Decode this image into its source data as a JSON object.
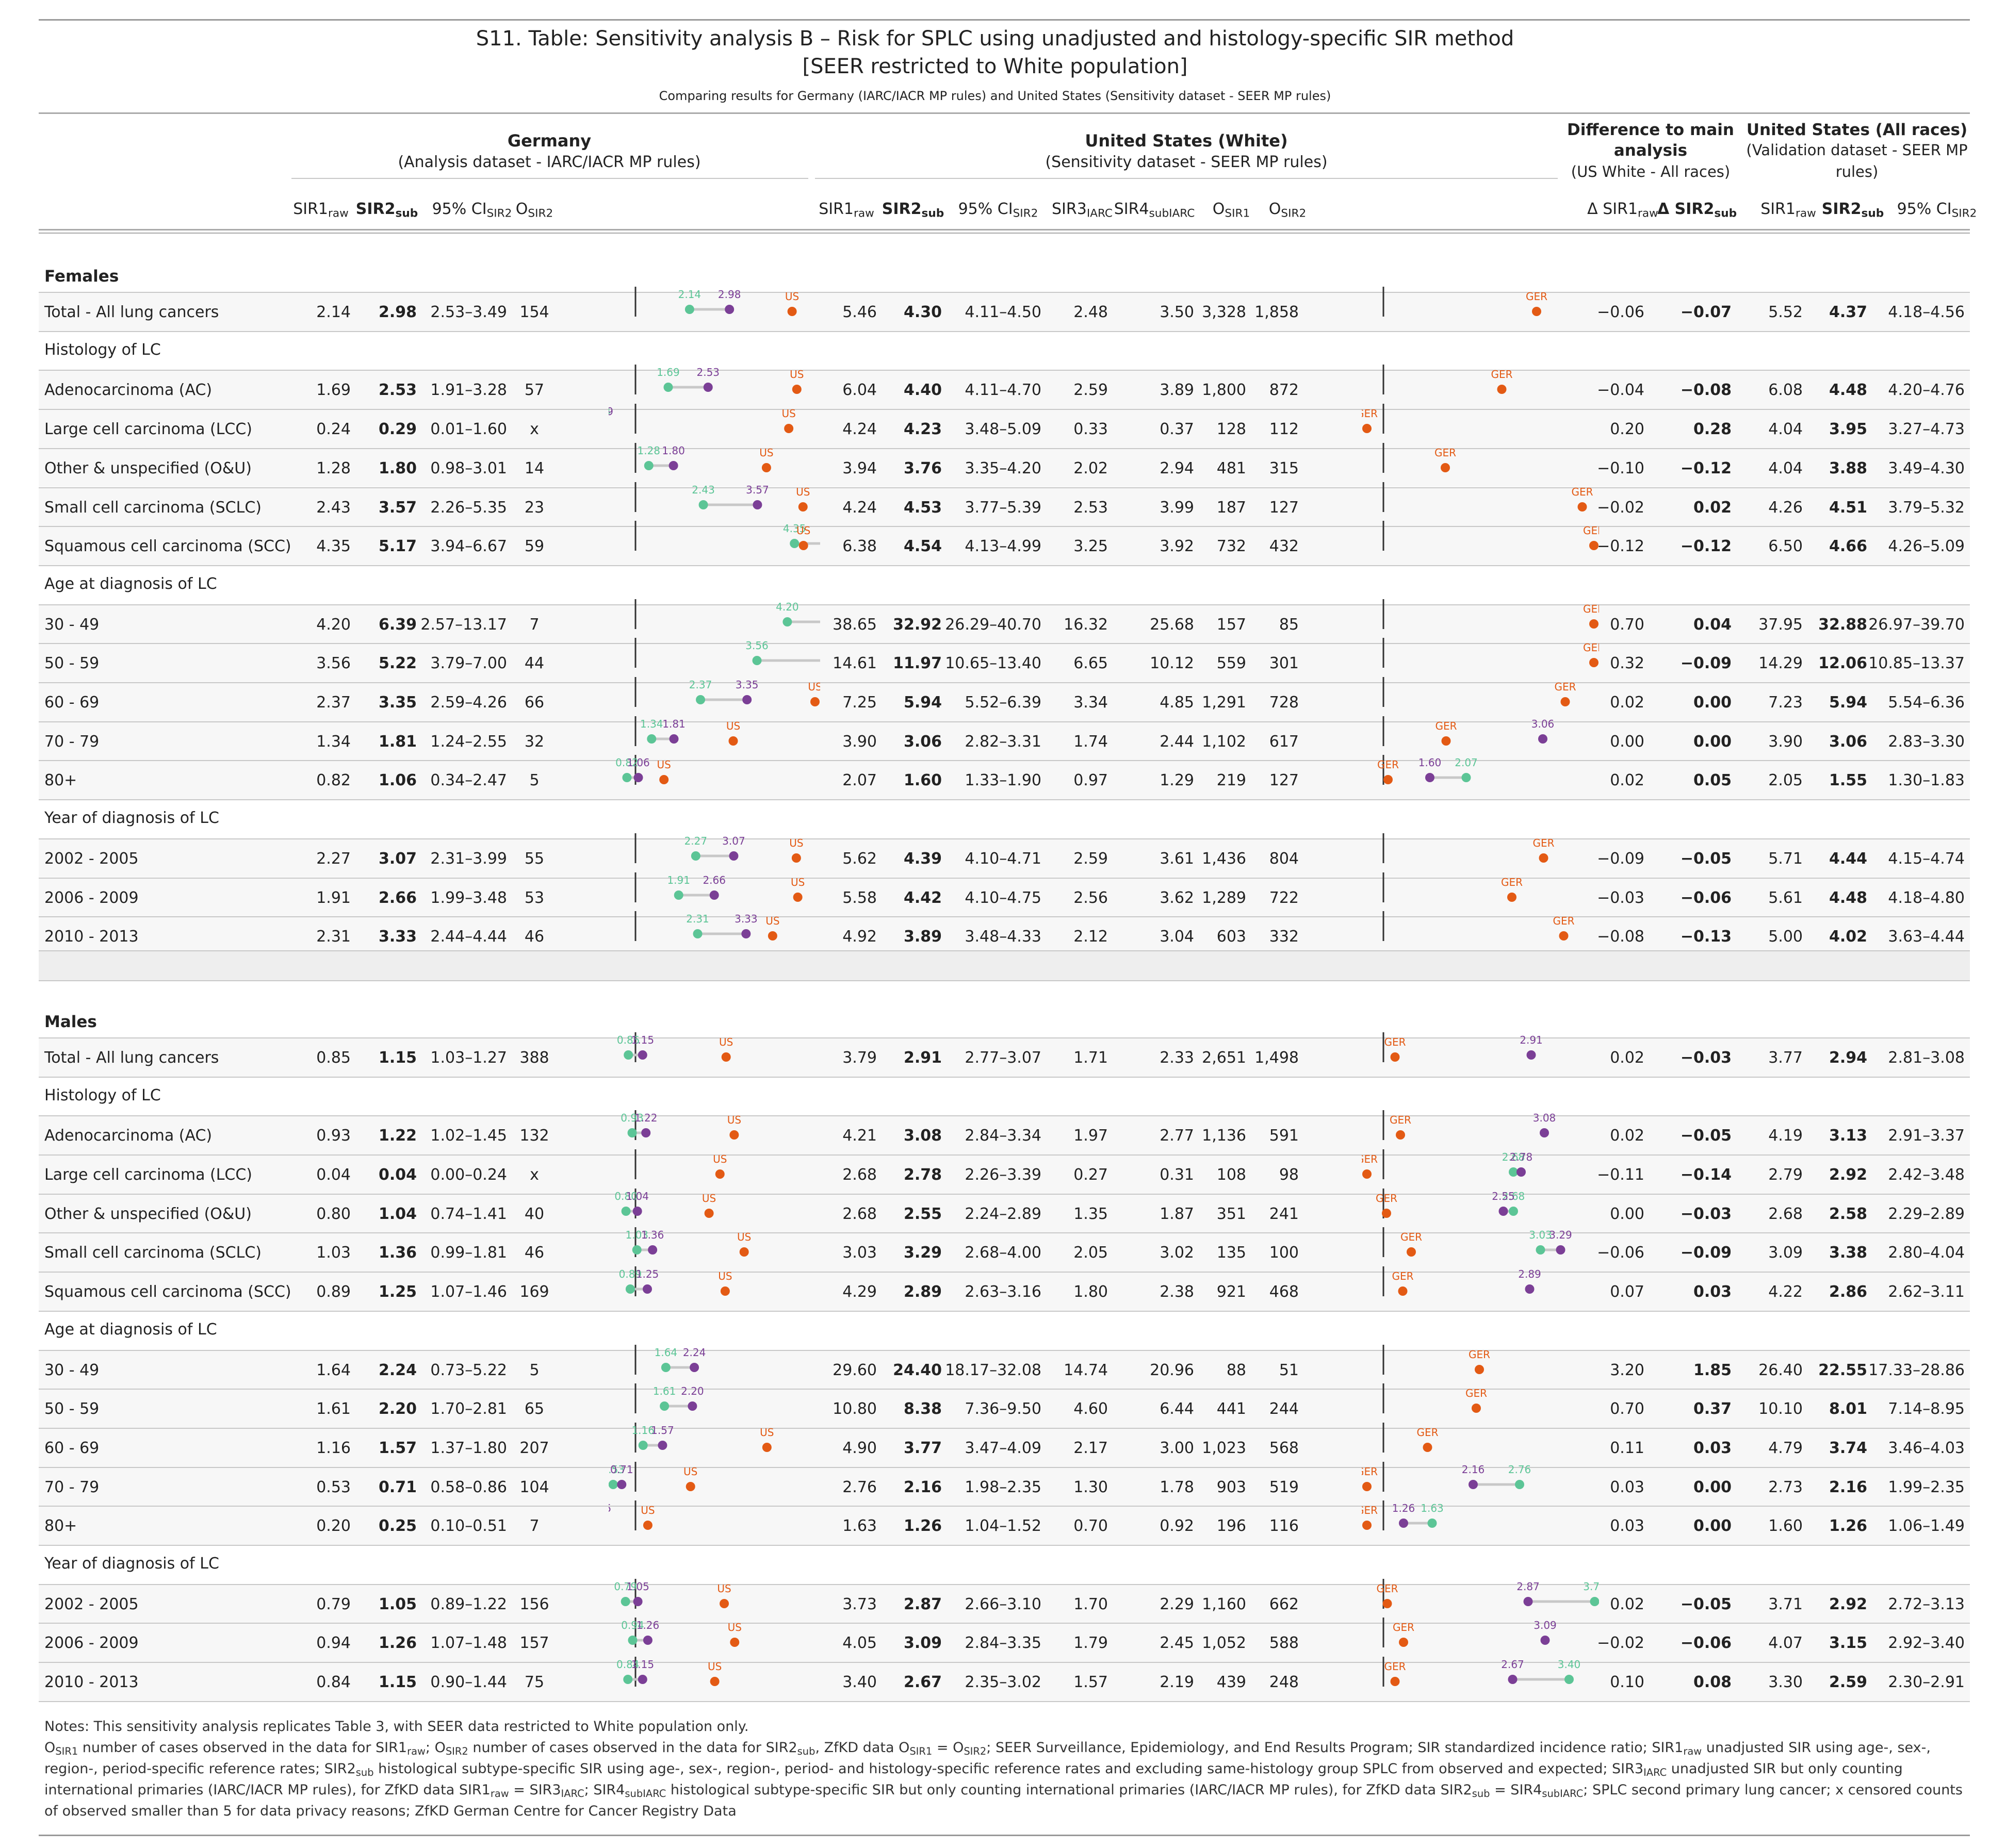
{
  "title": "S11. Table: Sensitivity analysis B – Risk for SPLC using unadjusted and histology-specific SIR method",
  "subtitle": "[SEER restricted to White population]",
  "comparing": "Comparing results for Germany (IARC/IACR MP rules) and United States (Sensitivity dataset - SEER MP rules)",
  "groups": {
    "germany": {
      "name": "Germany",
      "desc": "(Analysis dataset - IARC/IACR MP rules)"
    },
    "us_white": {
      "name": "United States (White)",
      "desc": "(Sensitivity dataset - SEER MP rules)"
    },
    "diff": {
      "name1": "Difference to main",
      "name2": "analysis",
      "desc": "(US White - All races)"
    },
    "us_all": {
      "name": "United States (All races)",
      "desc1": "(Validation dataset - SEER MP",
      "desc2": "rules)"
    }
  },
  "columns": {
    "sir1": {
      "base": "SIR1",
      "sub": "raw"
    },
    "sir2": {
      "base": "SIR2",
      "sub": "sub"
    },
    "ci": {
      "base": "95% CI",
      "sub": "SIR2"
    },
    "osir2": {
      "base": "O",
      "sub": "SIR2"
    },
    "sir3": {
      "base": "SIR3",
      "sub": "IARC"
    },
    "sir4": {
      "base": "SIR4",
      "sub": "subIARC"
    },
    "osir1": {
      "base": "O",
      "sub": "SIR1"
    },
    "dsir1": {
      "base": "Δ SIR1",
      "sub": "raw"
    },
    "dsir2": {
      "base": "Δ SIR2",
      "sub": "sub"
    }
  },
  "plot_labels": {
    "us": "US",
    "ger": "GER"
  },
  "colors": {
    "sir1": "#5cc596",
    "sir2": "#7b3f96",
    "other": "#e35a14",
    "line": "#c8c8c8",
    "shade": "#f7f7f7"
  },
  "sections": [
    {
      "name": "Females",
      "rows": [
        {
          "type": "data",
          "label": "Total - All lung cancers",
          "g": [
            "2.14",
            "2.98",
            "2.53–3.49",
            "154"
          ],
          "u": [
            "5.46",
            "4.30",
            "4.11–4.50",
            "2.48",
            "3.50",
            "3,328",
            "1,858"
          ],
          "d": [
            "−0.06",
            "−0.07"
          ],
          "a": [
            "5.52",
            "4.37",
            "4.18–4.56"
          ]
        },
        {
          "type": "sub",
          "label": "Histology of LC"
        },
        {
          "type": "data",
          "label": "Adenocarcinoma (AC)",
          "g": [
            "1.69",
            "2.53",
            "1.91–3.28",
            "57"
          ],
          "u": [
            "6.04",
            "4.40",
            "4.11–4.70",
            "2.59",
            "3.89",
            "1,800",
            "872"
          ],
          "d": [
            "−0.04",
            "−0.08"
          ],
          "a": [
            "6.08",
            "4.48",
            "4.20–4.76"
          ]
        },
        {
          "type": "data",
          "label": "Large cell carcinoma (LCC)",
          "g": [
            "0.24",
            "0.29",
            "0.01–1.60",
            "x"
          ],
          "u": [
            "4.24",
            "4.23",
            "3.48–5.09",
            "0.33",
            "0.37",
            "128",
            "112"
          ],
          "d": [
            "0.20",
            "0.28"
          ],
          "a": [
            "4.04",
            "3.95",
            "3.27–4.73"
          ]
        },
        {
          "type": "data",
          "label": "Other & unspecified (O&U)",
          "g": [
            "1.28",
            "1.80",
            "0.98–3.01",
            "14"
          ],
          "u": [
            "3.94",
            "3.76",
            "3.35–4.20",
            "2.02",
            "2.94",
            "481",
            "315"
          ],
          "d": [
            "−0.10",
            "−0.12"
          ],
          "a": [
            "4.04",
            "3.88",
            "3.49–4.30"
          ]
        },
        {
          "type": "data",
          "label": "Small cell carcinoma (SCLC)",
          "g": [
            "2.43",
            "3.57",
            "2.26–5.35",
            "23"
          ],
          "u": [
            "4.24",
            "4.53",
            "3.77–5.39",
            "2.53",
            "3.99",
            "187",
            "127"
          ],
          "d": [
            "−0.02",
            "0.02"
          ],
          "a": [
            "4.26",
            "4.51",
            "3.79–5.32"
          ]
        },
        {
          "type": "data",
          "label": "Squamous cell carcinoma (SCC)",
          "g": [
            "4.35",
            "5.17",
            "3.94–6.67",
            "59"
          ],
          "u": [
            "6.38",
            "4.54",
            "4.13–4.99",
            "3.25",
            "3.92",
            "732",
            "432"
          ],
          "d": [
            "−0.12",
            "−0.12"
          ],
          "a": [
            "6.50",
            "4.66",
            "4.26–5.09"
          ]
        },
        {
          "type": "sub",
          "label": "Age at diagnosis of LC"
        },
        {
          "type": "data",
          "label": "30 - 49",
          "g": [
            "4.20",
            "6.39",
            "2.57–13.17",
            "7"
          ],
          "u": [
            "38.65",
            "32.92",
            "26.29–40.70",
            "16.32",
            "25.68",
            "157",
            "85"
          ],
          "d": [
            "0.70",
            "0.04"
          ],
          "a": [
            "37.95",
            "32.88",
            "26.97–39.70"
          ]
        },
        {
          "type": "data",
          "label": "50 - 59",
          "g": [
            "3.56",
            "5.22",
            "3.79–7.00",
            "44"
          ],
          "u": [
            "14.61",
            "11.97",
            "10.65–13.40",
            "6.65",
            "10.12",
            "559",
            "301"
          ],
          "d": [
            "0.32",
            "−0.09"
          ],
          "a": [
            "14.29",
            "12.06",
            "10.85–13.37"
          ]
        },
        {
          "type": "data",
          "label": "60 - 69",
          "g": [
            "2.37",
            "3.35",
            "2.59–4.26",
            "66"
          ],
          "u": [
            "7.25",
            "5.94",
            "5.52–6.39",
            "3.34",
            "4.85",
            "1,291",
            "728"
          ],
          "d": [
            "0.02",
            "0.00"
          ],
          "a": [
            "7.23",
            "5.94",
            "5.54–6.36"
          ]
        },
        {
          "type": "data",
          "label": "70 - 79",
          "g": [
            "1.34",
            "1.81",
            "1.24–2.55",
            "32"
          ],
          "u": [
            "3.90",
            "3.06",
            "2.82–3.31",
            "1.74",
            "2.44",
            "1,102",
            "617"
          ],
          "d": [
            "0.00",
            "0.00"
          ],
          "a": [
            "3.90",
            "3.06",
            "2.83–3.30"
          ]
        },
        {
          "type": "data",
          "label": "80+",
          "g": [
            "0.82",
            "1.06",
            "0.34–2.47",
            "5"
          ],
          "u": [
            "2.07",
            "1.60",
            "1.33–1.90",
            "0.97",
            "1.29",
            "219",
            "127"
          ],
          "d": [
            "0.02",
            "0.05"
          ],
          "a": [
            "2.05",
            "1.55",
            "1.30–1.83"
          ]
        },
        {
          "type": "sub",
          "label": "Year of diagnosis of LC"
        },
        {
          "type": "data",
          "label": "2002 - 2005",
          "g": [
            "2.27",
            "3.07",
            "2.31–3.99",
            "55"
          ],
          "u": [
            "5.62",
            "4.39",
            "4.10–4.71",
            "2.59",
            "3.61",
            "1,436",
            "804"
          ],
          "d": [
            "−0.09",
            "−0.05"
          ],
          "a": [
            "5.71",
            "4.44",
            "4.15–4.74"
          ]
        },
        {
          "type": "data",
          "label": "2006 - 2009",
          "g": [
            "1.91",
            "2.66",
            "1.99–3.48",
            "53"
          ],
          "u": [
            "5.58",
            "4.42",
            "4.10–4.75",
            "2.56",
            "3.62",
            "1,289",
            "722"
          ],
          "d": [
            "−0.03",
            "−0.06"
          ],
          "a": [
            "5.61",
            "4.48",
            "4.18–4.80"
          ]
        },
        {
          "type": "data",
          "label": "2010 - 2013",
          "g": [
            "2.31",
            "3.33",
            "2.44–4.44",
            "46"
          ],
          "u": [
            "4.92",
            "3.89",
            "3.48–4.33",
            "2.12",
            "3.04",
            "603",
            "332"
          ],
          "d": [
            "−0.08",
            "−0.13"
          ],
          "a": [
            "5.00",
            "4.02",
            "3.63–4.44"
          ]
        }
      ]
    },
    {
      "name": "Males",
      "rows": [
        {
          "type": "data",
          "label": "Total - All lung cancers",
          "g": [
            "0.85",
            "1.15",
            "1.03–1.27",
            "388"
          ],
          "u": [
            "3.79",
            "2.91",
            "2.77–3.07",
            "1.71",
            "2.33",
            "2,651",
            "1,498"
          ],
          "d": [
            "0.02",
            "−0.03"
          ],
          "a": [
            "3.77",
            "2.94",
            "2.81–3.08"
          ]
        },
        {
          "type": "sub",
          "label": "Histology of LC"
        },
        {
          "type": "data",
          "label": "Adenocarcinoma (AC)",
          "g": [
            "0.93",
            "1.22",
            "1.02–1.45",
            "132"
          ],
          "u": [
            "4.21",
            "3.08",
            "2.84–3.34",
            "1.97",
            "2.77",
            "1,136",
            "591"
          ],
          "d": [
            "0.02",
            "−0.05"
          ],
          "a": [
            "4.19",
            "3.13",
            "2.91–3.37"
          ]
        },
        {
          "type": "data",
          "label": "Large cell carcinoma (LCC)",
          "g": [
            "0.04",
            "0.04",
            "0.00–0.24",
            "x"
          ],
          "u": [
            "2.68",
            "2.78",
            "2.26–3.39",
            "0.27",
            "0.31",
            "108",
            "98"
          ],
          "d": [
            "−0.11",
            "−0.14"
          ],
          "a": [
            "2.79",
            "2.92",
            "2.42–3.48"
          ]
        },
        {
          "type": "data",
          "label": "Other & unspecified (O&U)",
          "g": [
            "0.80",
            "1.04",
            "0.74–1.41",
            "40"
          ],
          "u": [
            "2.68",
            "2.55",
            "2.24–2.89",
            "1.35",
            "1.87",
            "351",
            "241"
          ],
          "d": [
            "0.00",
            "−0.03"
          ],
          "a": [
            "2.68",
            "2.58",
            "2.29–2.89"
          ]
        },
        {
          "type": "data",
          "label": "Small cell carcinoma (SCLC)",
          "g": [
            "1.03",
            "1.36",
            "0.99–1.81",
            "46"
          ],
          "u": [
            "3.03",
            "3.29",
            "2.68–4.00",
            "2.05",
            "3.02",
            "135",
            "100"
          ],
          "d": [
            "−0.06",
            "−0.09"
          ],
          "a": [
            "3.09",
            "3.38",
            "2.80–4.04"
          ]
        },
        {
          "type": "data",
          "label": "Squamous cell carcinoma (SCC)",
          "g": [
            "0.89",
            "1.25",
            "1.07–1.46",
            "169"
          ],
          "u": [
            "4.29",
            "2.89",
            "2.63–3.16",
            "1.80",
            "2.38",
            "921",
            "468"
          ],
          "d": [
            "0.07",
            "0.03"
          ],
          "a": [
            "4.22",
            "2.86",
            "2.62–3.11"
          ]
        },
        {
          "type": "sub",
          "label": "Age at diagnosis of LC"
        },
        {
          "type": "data",
          "label": "30 - 49",
          "g": [
            "1.64",
            "2.24",
            "0.73–5.22",
            "5"
          ],
          "u": [
            "29.60",
            "24.40",
            "18.17–32.08",
            "14.74",
            "20.96",
            "88",
            "51"
          ],
          "d": [
            "3.20",
            "1.85"
          ],
          "a": [
            "26.40",
            "22.55",
            "17.33–28.86"
          ]
        },
        {
          "type": "data",
          "label": "50 - 59",
          "g": [
            "1.61",
            "2.20",
            "1.70–2.81",
            "65"
          ],
          "u": [
            "10.80",
            "8.38",
            "7.36–9.50",
            "4.60",
            "6.44",
            "441",
            "244"
          ],
          "d": [
            "0.70",
            "0.37"
          ],
          "a": [
            "10.10",
            "8.01",
            "7.14–8.95"
          ]
        },
        {
          "type": "data",
          "label": "60 - 69",
          "g": [
            "1.16",
            "1.57",
            "1.37–1.80",
            "207"
          ],
          "u": [
            "4.90",
            "3.77",
            "3.47–4.09",
            "2.17",
            "3.00",
            "1,023",
            "568"
          ],
          "d": [
            "0.11",
            "0.03"
          ],
          "a": [
            "4.79",
            "3.74",
            "3.46–4.03"
          ]
        },
        {
          "type": "data",
          "label": "70 - 79",
          "g": [
            "0.53",
            "0.71",
            "0.58–0.86",
            "104"
          ],
          "u": [
            "2.76",
            "2.16",
            "1.98–2.35",
            "1.30",
            "1.78",
            "903",
            "519"
          ],
          "d": [
            "0.03",
            "0.00"
          ],
          "a": [
            "2.73",
            "2.16",
            "1.99–2.35"
          ]
        },
        {
          "type": "data",
          "label": "80+",
          "g": [
            "0.20",
            "0.25",
            "0.10–0.51",
            "7"
          ],
          "u": [
            "1.63",
            "1.26",
            "1.04–1.52",
            "0.70",
            "0.92",
            "196",
            "116"
          ],
          "d": [
            "0.03",
            "0.00"
          ],
          "a": [
            "1.60",
            "1.26",
            "1.06–1.49"
          ]
        },
        {
          "type": "sub",
          "label": "Year of diagnosis of LC"
        },
        {
          "type": "data",
          "label": "2002 - 2005",
          "g": [
            "0.79",
            "1.05",
            "0.89–1.22",
            "156"
          ],
          "u": [
            "3.73",
            "2.87",
            "2.66–3.10",
            "1.70",
            "2.29",
            "1,160",
            "662"
          ],
          "d": [
            "0.02",
            "−0.05"
          ],
          "a": [
            "3.71",
            "2.92",
            "2.72–3.13"
          ]
        },
        {
          "type": "data",
          "label": "2006 - 2009",
          "g": [
            "0.94",
            "1.26",
            "1.07–1.48",
            "157"
          ],
          "u": [
            "4.05",
            "3.09",
            "2.84–3.35",
            "1.79",
            "2.45",
            "1,052",
            "588"
          ],
          "d": [
            "−0.02",
            "−0.06"
          ],
          "a": [
            "4.07",
            "3.15",
            "2.92–3.40"
          ]
        },
        {
          "type": "data",
          "label": "2010 - 2013",
          "g": [
            "0.84",
            "1.15",
            "0.90–1.44",
            "75"
          ],
          "u": [
            "3.40",
            "2.67",
            "2.35–3.02",
            "1.57",
            "2.19",
            "439",
            "248"
          ],
          "d": [
            "0.10",
            "0.08"
          ],
          "a": [
            "3.30",
            "2.59",
            "2.30–2.91"
          ]
        }
      ]
    }
  ],
  "notes": {
    "l1": "Notes: This sensitivity analysis replicates Table 3, with SEER data restricted to White population only.",
    "p1a": "O",
    "p1s": "SIR1",
    "p1b": " number of cases observed in the data for SIR1",
    "p1bs": "raw",
    "p1c": "; O",
    "p1cs": "SIR2",
    "p2a": " number of cases observed in the data for SIR2",
    "p2as": "sub",
    "p2b": ", ZfKD data O",
    "p2bs": "SIR1",
    "p2c": " = O",
    "p2cs": "SIR2",
    "p3a": "; SEER Surveillance, Epidemiology, and End Results Program; SIR standardized incidence ratio; SIR1",
    "p3as": "raw",
    "p4a": " unadjusted SIR using age-, sex-, region-, period-specific reference rates; SIR2",
    "p4as": "sub",
    "p5a": " histological subtype-specific SIR using age-, sex-, region-, period- and histology-specific reference rates and excluding same-histology group SPLC from observed and expected; SIR3",
    "p5as": "IARC",
    "p6a": " unadjusted SIR but only counting international primaries (IARC/IACR MP rules), for ZfKD data SIR1",
    "p6as": "raw",
    "p6b": " = SIR3",
    "p6bs": "IARC",
    "p7a": "; SIR4",
    "p7as": "subIARC",
    "p7b": " histological subtype-specific SIR but only counting international primaries (IARC/IACR MP rules), for ZfKD data SIR2",
    "p7bs": "sub",
    "p7c": " = SIR4",
    "p7cs": "subIARC",
    "p8a": "; SPLC second primary lung cancer; x censored counts of observed smaller than 5 for data privacy reasons; ZfKD German Centre for Cancer Registry Data"
  }
}
